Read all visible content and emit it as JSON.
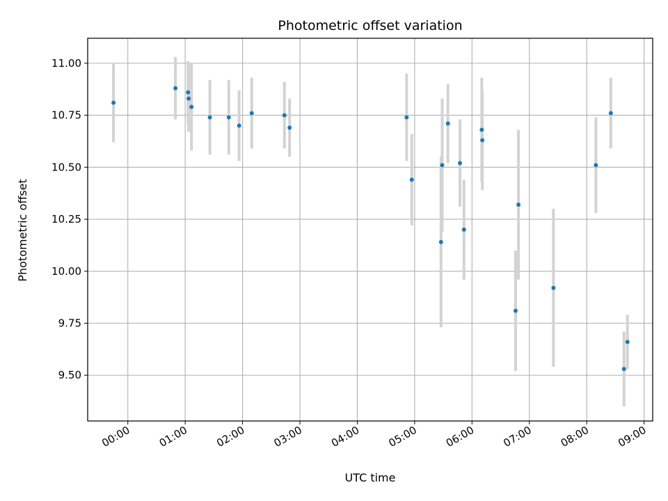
{
  "chart_data": {
    "type": "scatter",
    "title": "Photometric offset variation",
    "xlabel": "UTC time",
    "ylabel": "Photometric offset",
    "grid": true,
    "x_unit": "hours since 00:00 UTC",
    "xlim": [
      -0.7,
      9.15
    ],
    "ylim": [
      9.28,
      11.12
    ],
    "xticks": [
      0,
      1,
      2,
      3,
      4,
      5,
      6,
      7,
      8,
      9
    ],
    "xtick_labels": [
      "00:00",
      "01:00",
      "02:00",
      "03:00",
      "04:00",
      "05:00",
      "06:00",
      "07:00",
      "08:00",
      "09:00"
    ],
    "yticks": [
      9.5,
      9.75,
      10.0,
      10.25,
      10.5,
      10.75,
      11.0
    ],
    "ytick_labels": [
      "9.50",
      "9.75",
      "10.00",
      "10.25",
      "10.50",
      "10.75",
      "11.00"
    ],
    "point_color": "#1f77b4",
    "errorbar_color": "#d3d3d3",
    "points": [
      {
        "x": -0.25,
        "y": 10.81,
        "err": 0.19
      },
      {
        "x": 0.83,
        "y": 10.88,
        "err": 0.15
      },
      {
        "x": 1.05,
        "y": 10.86,
        "err": 0.15
      },
      {
        "x": 1.06,
        "y": 10.83,
        "err": 0.16
      },
      {
        "x": 1.11,
        "y": 10.79,
        "err": 0.21
      },
      {
        "x": 1.43,
        "y": 10.74,
        "err": 0.18
      },
      {
        "x": 1.76,
        "y": 10.74,
        "err": 0.18
      },
      {
        "x": 1.94,
        "y": 10.7,
        "err": 0.17
      },
      {
        "x": 2.16,
        "y": 10.76,
        "err": 0.17
      },
      {
        "x": 2.73,
        "y": 10.75,
        "err": 0.16
      },
      {
        "x": 2.82,
        "y": 10.69,
        "err": 0.14
      },
      {
        "x": 4.86,
        "y": 10.74,
        "err": 0.21
      },
      {
        "x": 4.95,
        "y": 10.44,
        "err": 0.22
      },
      {
        "x": 5.46,
        "y": 10.14,
        "err": 0.41
      },
      {
        "x": 5.48,
        "y": 10.51,
        "err": 0.32
      },
      {
        "x": 5.58,
        "y": 10.71,
        "err": 0.19
      },
      {
        "x": 5.79,
        "y": 10.52,
        "err": 0.21
      },
      {
        "x": 5.86,
        "y": 10.2,
        "err": 0.24
      },
      {
        "x": 6.17,
        "y": 10.68,
        "err": 0.25
      },
      {
        "x": 6.18,
        "y": 10.63,
        "err": 0.24
      },
      {
        "x": 6.76,
        "y": 9.81,
        "err": 0.29
      },
      {
        "x": 6.81,
        "y": 10.32,
        "err": 0.36
      },
      {
        "x": 7.42,
        "y": 9.92,
        "err": 0.38
      },
      {
        "x": 8.16,
        "y": 10.51,
        "err": 0.23
      },
      {
        "x": 8.42,
        "y": 10.76,
        "err": 0.17
      },
      {
        "x": 8.65,
        "y": 9.53,
        "err": 0.18
      },
      {
        "x": 8.71,
        "y": 9.66,
        "err": 0.13
      }
    ]
  }
}
